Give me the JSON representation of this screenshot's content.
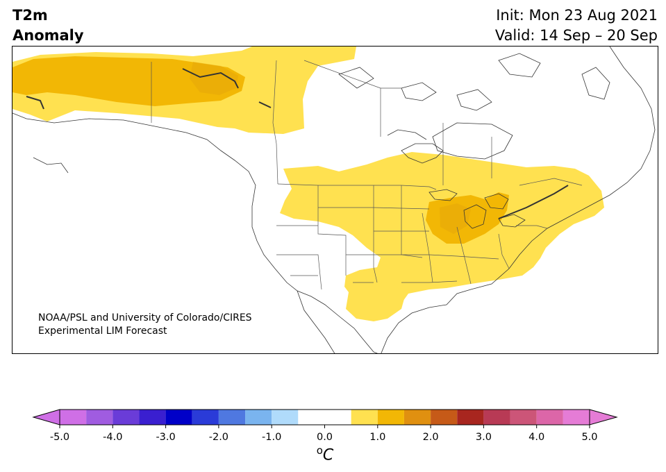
{
  "header": {
    "title_line1": "T2m",
    "title_line2": "Anomaly",
    "init_line": "Init: Mon 23 Aug 2021",
    "valid_line": "Valid: 14 Sep – 20 Sep"
  },
  "map": {
    "region": "North America",
    "credit_line1": "NOAA/PSL and University of Colorado/CIRES",
    "credit_line2": "Experimental LIM Forecast",
    "anomaly_colors": {
      "0.5_to_1.0": "#ffe150",
      "1.0_to_1.5": "#f2b705",
      "1.5_to_2.0": "#e09010"
    }
  },
  "colorbar": {
    "unit_base": "C",
    "unit_sup": "o",
    "ticks": [
      "-5.0",
      "-4.0",
      "-3.0",
      "-2.0",
      "-1.0",
      "0.0",
      "1.0",
      "2.0",
      "3.0",
      "4.0",
      "5.0"
    ],
    "bins": [
      -5.0,
      -4.5,
      -4.0,
      -3.5,
      -3.0,
      -2.5,
      -2.0,
      -1.5,
      -1.0,
      -0.5,
      0.5,
      1.0,
      1.5,
      2.0,
      2.5,
      3.0,
      3.5,
      4.0,
      4.5,
      5.0
    ],
    "colors": [
      "#cf6fe6",
      "#a05ce0",
      "#6a3cd8",
      "#3a1fd0",
      "#0000c8",
      "#2a3bd8",
      "#4f78e0",
      "#7ab4ef",
      "#b0dbfb",
      "#ffffff",
      "#ffe150",
      "#f2b705",
      "#e09010",
      "#c65a18",
      "#a8261f",
      "#b83a55",
      "#cc5578",
      "#dc66a8",
      "#e57cd6"
    ],
    "extend_low_color": "#cf6fe6",
    "extend_high_color": "#e57cd6"
  }
}
